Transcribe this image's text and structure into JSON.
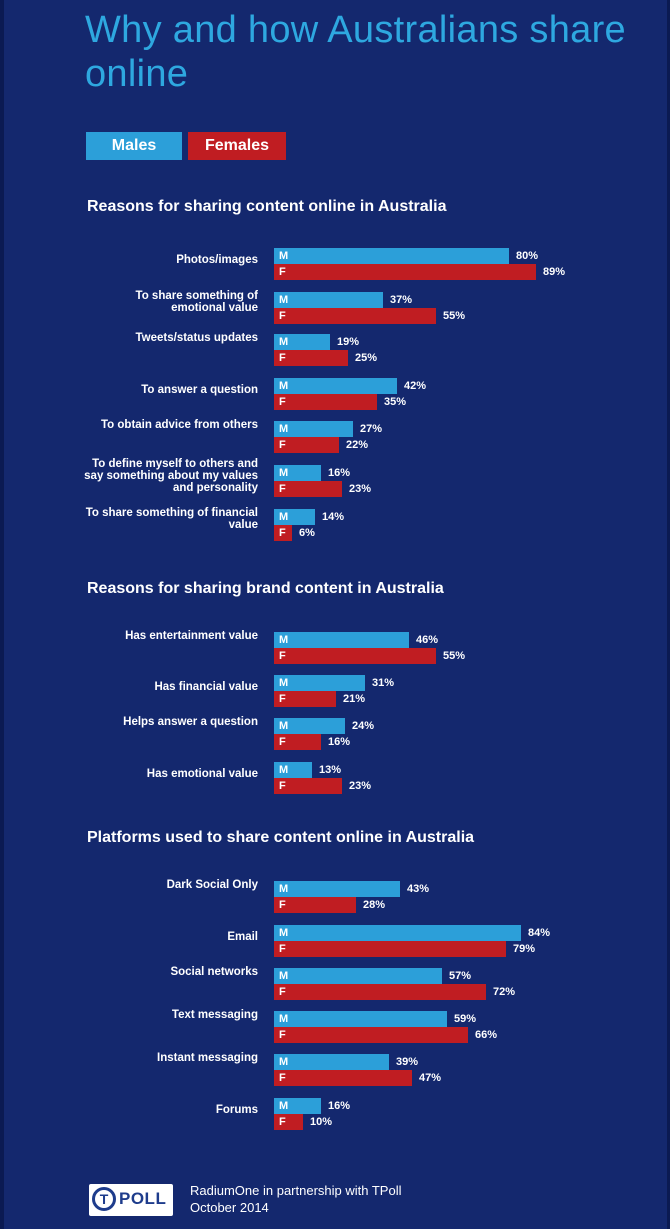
{
  "title": "Why and how Australians share online",
  "legend": {
    "males": "Males",
    "females": "Females"
  },
  "colors": {
    "background": "#14286e",
    "males": "#2c9fd9",
    "females": "#c01d22",
    "title": "#2ea8e0"
  },
  "bar_letters": {
    "m": "M",
    "f": "F"
  },
  "footer": {
    "logo_letter": "T",
    "logo_text": "POLL",
    "line1": "RadiumOne in partnership with TPoll",
    "line2": "October 2014"
  },
  "chart_data": [
    {
      "type": "bar",
      "orientation": "horizontal",
      "title": "Reasons for sharing content online in Australia",
      "categories": [
        "Photos/images",
        "To share something of emotional value",
        "Tweets/status updates",
        "To answer a question",
        "To obtain advice from others",
        "To define myself to others and say something about my values and personality",
        "To share something of financial value"
      ],
      "series": [
        {
          "name": "Males",
          "values": [
            80,
            37,
            19,
            42,
            27,
            16,
            14
          ]
        },
        {
          "name": "Females",
          "values": [
            89,
            55,
            25,
            35,
            22,
            23,
            6
          ]
        }
      ],
      "value_labels": {
        "Males": [
          "80%",
          "37%",
          "19%",
          "42%",
          "27%",
          "16%",
          "14%"
        ],
        "Females": [
          "89%",
          "55%",
          "25%",
          "35%",
          "22%",
          "23%",
          "6%"
        ]
      },
      "xlim": [
        0,
        100
      ],
      "unit": "%"
    },
    {
      "type": "bar",
      "orientation": "horizontal",
      "title": "Reasons for sharing brand content in Australia",
      "categories": [
        "Has entertainment value",
        "Has financial value",
        "Helps answer a question",
        "Has emotional value"
      ],
      "series": [
        {
          "name": "Males",
          "values": [
            46,
            31,
            24,
            13
          ]
        },
        {
          "name": "Females",
          "values": [
            55,
            21,
            16,
            23
          ]
        }
      ],
      "value_labels": {
        "Males": [
          "46%",
          "31%",
          "24%",
          "13%"
        ],
        "Females": [
          "55%",
          "21%",
          "16%",
          "23%"
        ]
      },
      "xlim": [
        0,
        100
      ],
      "unit": "%"
    },
    {
      "type": "bar",
      "orientation": "horizontal",
      "title": "Platforms used to share content online in Australia",
      "categories": [
        "Dark Social Only",
        "Email",
        "Social networks",
        "Text messaging",
        "Instant messaging",
        "Forums"
      ],
      "series": [
        {
          "name": "Males",
          "values": [
            43,
            84,
            57,
            59,
            39,
            16
          ]
        },
        {
          "name": "Females",
          "values": [
            28,
            79,
            72,
            66,
            47,
            10
          ]
        }
      ],
      "value_labels": {
        "Males": [
          "43%",
          "84%",
          "57%",
          "59%",
          "39%",
          "16%"
        ],
        "Females": [
          "28%",
          "79%",
          "72%",
          "66%",
          "47%",
          "10%"
        ]
      },
      "xlim": [
        0,
        100
      ],
      "unit": "%"
    }
  ]
}
